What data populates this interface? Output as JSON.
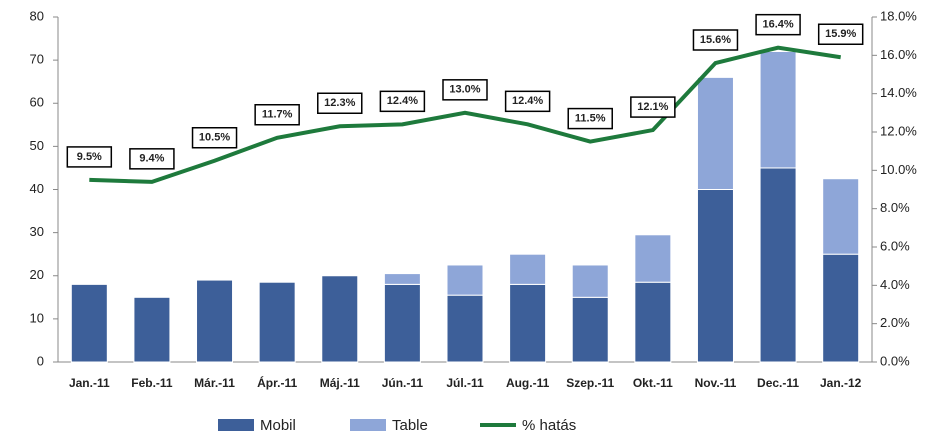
{
  "chart_data": {
    "type": "bar",
    "categories": [
      "Jan.-11",
      "Feb.-11",
      "Már.-11",
      "Ápr.-11",
      "Máj.-11",
      "Jún.-11",
      "Júl.-11",
      "Aug.-11",
      "Szep.-11",
      "Okt.-11",
      "Nov.-11",
      "Dec.-11",
      "Jan.-12"
    ],
    "stacked": true,
    "series": [
      {
        "name": "Mobil",
        "color": "#3d5f99",
        "values": [
          18,
          15,
          19,
          18.5,
          20,
          18,
          15.5,
          18,
          15,
          18.5,
          40,
          45,
          25
        ]
      },
      {
        "name": "Table",
        "color": "#8ea6d8",
        "values": [
          0,
          0,
          0,
          0,
          0,
          2.5,
          7,
          7,
          7.5,
          11,
          26,
          27,
          17.5
        ]
      },
      {
        "name": "% hatás",
        "type": "line",
        "axis": "y2",
        "color": "#1e7a3c",
        "values": [
          9.5,
          9.4,
          10.5,
          11.7,
          12.3,
          12.4,
          13.0,
          12.4,
          11.5,
          12.1,
          15.6,
          16.4,
          15.9
        ],
        "value_labels": [
          "9.5%",
          "9.4%",
          "10.5%",
          "11.7%",
          "12.3%",
          "12.4%",
          "13.0%",
          "12.4%",
          "11.5%",
          "12.1%",
          "15.6%",
          "16.4%",
          "15.9%"
        ]
      }
    ],
    "ylim": [
      0,
      80
    ],
    "yticks": [
      0,
      10,
      20,
      30,
      40,
      50,
      60,
      70,
      80
    ],
    "y2lim": [
      0,
      18
    ],
    "y2ticks": [
      {
        "value": 0,
        "label": "0.0%"
      },
      {
        "value": 2,
        "label": "2.0%"
      },
      {
        "value": 4,
        "label": "4.0%"
      },
      {
        "value": 6,
        "label": "6.0%"
      },
      {
        "value": 8,
        "label": "8.0%"
      },
      {
        "value": 10,
        "label": "10.0%"
      },
      {
        "value": 12,
        "label": "12.0%"
      },
      {
        "value": 14,
        "label": "14.0%"
      },
      {
        "value": 16,
        "label": "16.0%"
      },
      {
        "value": 18,
        "label": "18.0%"
      }
    ],
    "legend": "bottom"
  }
}
